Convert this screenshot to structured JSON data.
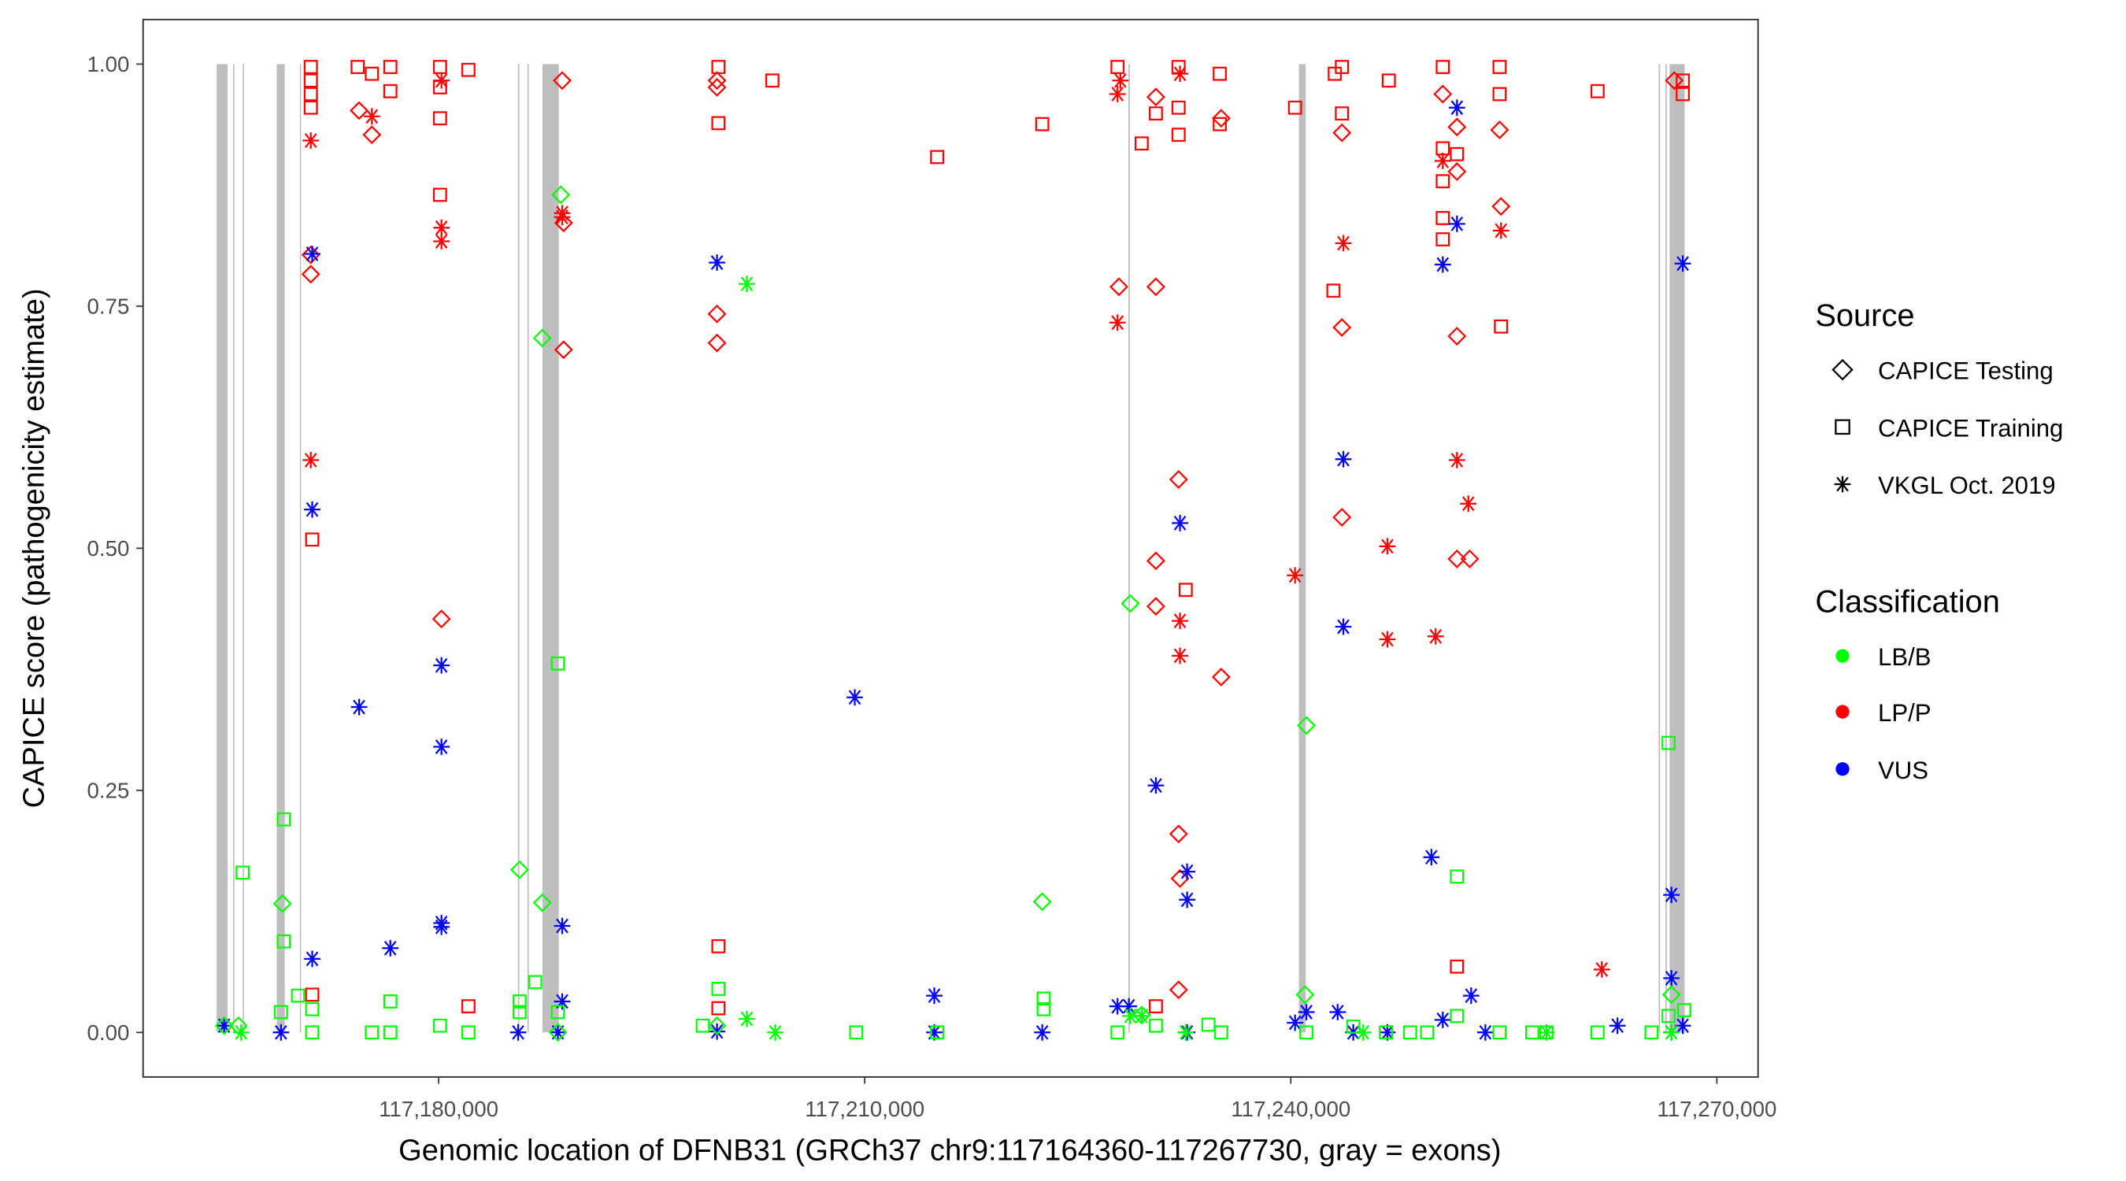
{
  "chart_data": {
    "type": "scatter",
    "title": "",
    "xlabel": "Genomic location of DFNB31 (GRCh37 chr9:117164360-117267730, gray = exons)",
    "ylabel": "CAPICE score (pathogenicity estimate)",
    "xlim": [
      117159192,
      117272898
    ],
    "ylim": [
      -0.046,
      1.046
    ],
    "x_ticks": [
      117180000,
      117210000,
      117240000,
      117270000
    ],
    "x_tick_labels": [
      "117,180,000",
      "117,210,000",
      "117,240,000",
      "117,270,000"
    ],
    "y_ticks": [
      0,
      0.25,
      0.5,
      0.75,
      1
    ],
    "y_tick_labels": [
      "0.00",
      "0.25",
      "0.50",
      "0.75",
      "1.00"
    ],
    "grid": false,
    "exons": [
      [
        117164370,
        117165140
      ],
      [
        117165530,
        117165620
      ],
      [
        117166200,
        117166290
      ],
      [
        117168600,
        117169170
      ],
      [
        117170230,
        117170320
      ],
      [
        117185580,
        117185680
      ],
      [
        117186250,
        117186350
      ],
      [
        117187310,
        117188460
      ],
      [
        117228570,
        117228670
      ],
      [
        117240570,
        117241050
      ],
      [
        117265900,
        117266000
      ],
      [
        117266380,
        117266480
      ],
      [
        117266670,
        117267730
      ]
    ],
    "exon_color": "#bebebe",
    "legend": {
      "placement": "right",
      "source_title": "Source",
      "source_items": [
        {
          "label": "CAPICE Testing",
          "shape": "diamond"
        },
        {
          "label": "CAPICE Training",
          "shape": "square"
        },
        {
          "label": "VKGL Oct. 2019",
          "shape": "asterisk"
        }
      ],
      "class_title": "Classification",
      "class_items": [
        {
          "label": "LB/B",
          "color": "#00ff00"
        },
        {
          "label": "LP/P",
          "color": "#ff0000"
        },
        {
          "label": "VUS",
          "color": "#0000ff"
        }
      ]
    },
    "series": [
      {
        "source": "CAPICE Testing",
        "classification": "LP/P",
        "points": [
          [
            117171000,
            0.783
          ],
          [
            117171000,
            0.803
          ],
          [
            117174400,
            0.952
          ],
          [
            117175300,
            0.927
          ],
          [
            117180200,
            0.427
          ],
          [
            117188700,
            0.983
          ],
          [
            117188800,
            0.836
          ],
          [
            117188800,
            0.705
          ],
          [
            117199600,
            0.976
          ],
          [
            117199600,
            0.742
          ],
          [
            117199600,
            0.712
          ],
          [
            117199600,
            0.983
          ],
          [
            117227900,
            0.77
          ],
          [
            117230500,
            0.77
          ],
          [
            117230500,
            0.966
          ],
          [
            117230500,
            0.487
          ],
          [
            117230500,
            0.44
          ],
          [
            117232100,
            0.571
          ],
          [
            117232100,
            0.205
          ],
          [
            117232100,
            0.044
          ],
          [
            117232200,
            0.159
          ],
          [
            117235100,
            0.367
          ],
          [
            117235100,
            0.944
          ],
          [
            117243600,
            0.929
          ],
          [
            117243600,
            0.728
          ],
          [
            117243600,
            0.532
          ],
          [
            117251700,
            0.935
          ],
          [
            117251700,
            0.889
          ],
          [
            117251700,
            0.719
          ],
          [
            117251700,
            0.489
          ],
          [
            117252600,
            0.489
          ],
          [
            117254700,
            0.932
          ],
          [
            117254800,
            0.853
          ],
          [
            117250700,
            0.969
          ],
          [
            117267000,
            0.983
          ]
        ]
      },
      {
        "source": "CAPICE Training",
        "classification": "LP/P",
        "points": [
          [
            117171000,
            0.997
          ],
          [
            117171000,
            0.983
          ],
          [
            117171000,
            0.969
          ],
          [
            117171000,
            0.955
          ],
          [
            117171100,
            0.509
          ],
          [
            117171100,
            0.039
          ],
          [
            117174300,
            0.997
          ],
          [
            117175300,
            0.99
          ],
          [
            117176600,
            0.997
          ],
          [
            117176600,
            0.972
          ],
          [
            117180100,
            0.997
          ],
          [
            117180100,
            0.944
          ],
          [
            117180100,
            0.865
          ],
          [
            117180100,
            0.976
          ],
          [
            117182100,
            0.994
          ],
          [
            117199700,
            0.997
          ],
          [
            117199700,
            0.939
          ],
          [
            117199700,
            0.089
          ],
          [
            117199700,
            0.025
          ],
          [
            117203500,
            0.983
          ],
          [
            117215100,
            0.904
          ],
          [
            117222500,
            0.938
          ],
          [
            117227800,
            0.997
          ],
          [
            117229500,
            0.918
          ],
          [
            117230500,
            0.949
          ],
          [
            117232100,
            0.997
          ],
          [
            117232100,
            0.955
          ],
          [
            117232100,
            0.927
          ],
          [
            117232600,
            0.457
          ],
          [
            117235000,
            0.99
          ],
          [
            117235000,
            0.938
          ],
          [
            117240300,
            0.955
          ],
          [
            117243000,
            0.766
          ],
          [
            117243100,
            0.99
          ],
          [
            117243600,
            0.949
          ],
          [
            117243600,
            0.997
          ],
          [
            117246900,
            0.983
          ],
          [
            117250700,
            0.997
          ],
          [
            117250700,
            0.913
          ],
          [
            117250700,
            0.879
          ],
          [
            117250700,
            0.841
          ],
          [
            117250700,
            0.819
          ],
          [
            117251700,
            0.907
          ],
          [
            117251700,
            0.068
          ],
          [
            117254700,
            0.997
          ],
          [
            117254700,
            0.969
          ],
          [
            117254800,
            0.729
          ],
          [
            117261600,
            0.972
          ],
          [
            117267600,
            0.983
          ],
          [
            117267600,
            0.969
          ],
          [
            117182100,
            0.027
          ],
          [
            117230500,
            0.027
          ]
        ]
      },
      {
        "source": "VKGL Oct. 2019",
        "classification": "LP/P",
        "points": [
          [
            117171000,
            0.921
          ],
          [
            117171000,
            0.591
          ],
          [
            117175300,
            0.946
          ],
          [
            117180200,
            0.831
          ],
          [
            117180200,
            0.817
          ],
          [
            117180200,
            0.983
          ],
          [
            117188700,
            0.846
          ],
          [
            117188700,
            0.842
          ],
          [
            117227800,
            0.733
          ],
          [
            117227800,
            0.969
          ],
          [
            117232200,
            0.425
          ],
          [
            117232200,
            0.389
          ],
          [
            117240300,
            0.472
          ],
          [
            117243700,
            0.815
          ],
          [
            117246800,
            0.502
          ],
          [
            117246800,
            0.406
          ],
          [
            117250200,
            0.409
          ],
          [
            117250700,
            0.9
          ],
          [
            117251700,
            0.591
          ],
          [
            117252500,
            0.546
          ],
          [
            117254800,
            0.828
          ],
          [
            117261900,
            0.065
          ],
          [
            117228000,
            0.983
          ],
          [
            117232200,
            0.99
          ]
        ]
      },
      {
        "source": "VKGL Oct. 2019",
        "classification": "VUS",
        "points": [
          [
            117171100,
            0.804
          ],
          [
            117171100,
            0.54
          ],
          [
            117171100,
            0.076
          ],
          [
            117174400,
            0.336
          ],
          [
            117176600,
            0.087
          ],
          [
            117180200,
            0.379
          ],
          [
            117180200,
            0.295
          ],
          [
            117180200,
            0.113
          ],
          [
            117180200,
            0.109
          ],
          [
            117188700,
            0.11
          ],
          [
            117188700,
            0.032
          ],
          [
            117199600,
            0.795
          ],
          [
            117199600,
            0.001
          ],
          [
            117209300,
            0.346
          ],
          [
            117214900,
            0.038
          ],
          [
            117214900,
            0.0
          ],
          [
            117222500,
            0.0
          ],
          [
            117227800,
            0.027
          ],
          [
            117228600,
            0.027
          ],
          [
            117230500,
            0.255
          ],
          [
            117232200,
            0.526
          ],
          [
            117232700,
            0.166
          ],
          [
            117232700,
            0.137
          ],
          [
            117232700,
            0.0
          ],
          [
            117240300,
            0.01
          ],
          [
            117241100,
            0.021
          ],
          [
            117243300,
            0.021
          ],
          [
            117243700,
            0.592
          ],
          [
            117243700,
            0.419
          ],
          [
            117244400,
            0.0
          ],
          [
            117246800,
            0.0
          ],
          [
            117249900,
            0.181
          ],
          [
            117250700,
            0.793
          ],
          [
            117250700,
            0.013
          ],
          [
            117251700,
            0.955
          ],
          [
            117251700,
            0.835
          ],
          [
            117252700,
            0.038
          ],
          [
            117253700,
            0.0
          ],
          [
            117263000,
            0.007
          ],
          [
            117266800,
            0.142
          ],
          [
            117266800,
            0.056
          ],
          [
            117267600,
            0.794
          ],
          [
            117267600,
            0.007
          ],
          [
            117164900,
            0.007
          ],
          [
            117168900,
            0.0
          ],
          [
            117185600,
            0.0
          ],
          [
            117188400,
            0.0
          ],
          [
            117266800,
            0.0
          ]
        ]
      },
      {
        "source": "CAPICE Testing",
        "classification": "LB/B",
        "points": [
          [
            117169000,
            0.133
          ],
          [
            117185700,
            0.168
          ],
          [
            117187300,
            0.134
          ],
          [
            117187300,
            0.717
          ],
          [
            117188600,
            0.865
          ],
          [
            117222500,
            0.135
          ],
          [
            117228700,
            0.443
          ],
          [
            117229500,
            0.018
          ],
          [
            117241100,
            0.317
          ],
          [
            117241000,
            0.039
          ],
          [
            117266800,
            0.039
          ],
          [
            117164900,
            0.007
          ],
          [
            117165900,
            0.007
          ],
          [
            117188400,
            0.0
          ],
          [
            117199600,
            0.007
          ]
        ]
      },
      {
        "source": "CAPICE Training",
        "classification": "LB/B",
        "points": [
          [
            117166200,
            0.165
          ],
          [
            117169100,
            0.22
          ],
          [
            117169100,
            0.094
          ],
          [
            117168900,
            0.021
          ],
          [
            117170100,
            0.038
          ],
          [
            117171100,
            0.024
          ],
          [
            117171100,
            0.0
          ],
          [
            117175300,
            0.0
          ],
          [
            117176600,
            0.032
          ],
          [
            117176600,
            0.0
          ],
          [
            117180100,
            0.007
          ],
          [
            117182100,
            0.0
          ],
          [
            117185700,
            0.032
          ],
          [
            117185700,
            0.021
          ],
          [
            117186800,
            0.052
          ],
          [
            117188400,
            0.381
          ],
          [
            117188400,
            0.021
          ],
          [
            117199700,
            0.045
          ],
          [
            117198600,
            0.007
          ],
          [
            117209400,
            0.0
          ],
          [
            117215100,
            0.0
          ],
          [
            117222600,
            0.035
          ],
          [
            117222600,
            0.024
          ],
          [
            117227800,
            0.0
          ],
          [
            117230500,
            0.007
          ],
          [
            117234200,
            0.008
          ],
          [
            117235100,
            0.0
          ],
          [
            117241100,
            0.0
          ],
          [
            117244400,
            0.006
          ],
          [
            117246700,
            0.0
          ],
          [
            117248400,
            0.0
          ],
          [
            117249600,
            0.0
          ],
          [
            117251700,
            0.161
          ],
          [
            117251700,
            0.017
          ],
          [
            117254700,
            0.0
          ],
          [
            117257000,
            0.0
          ],
          [
            117258000,
            0.0
          ],
          [
            117261600,
            0.0
          ],
          [
            117266600,
            0.299
          ],
          [
            117266600,
            0.017
          ],
          [
            117267700,
            0.023
          ],
          [
            117265400,
            0.0
          ]
        ]
      },
      {
        "source": "VKGL Oct. 2019",
        "classification": "LB/B",
        "points": [
          [
            117201700,
            0.773
          ],
          [
            117201700,
            0.014
          ],
          [
            117203700,
            0.0
          ],
          [
            117166100,
            0.0
          ],
          [
            117229500,
            0.017
          ],
          [
            117228700,
            0.017
          ],
          [
            117258000,
            0.0
          ],
          [
            117266800,
            0.0
          ],
          [
            117232600,
            0.0
          ],
          [
            117245100,
            0.0
          ]
        ]
      }
    ]
  }
}
